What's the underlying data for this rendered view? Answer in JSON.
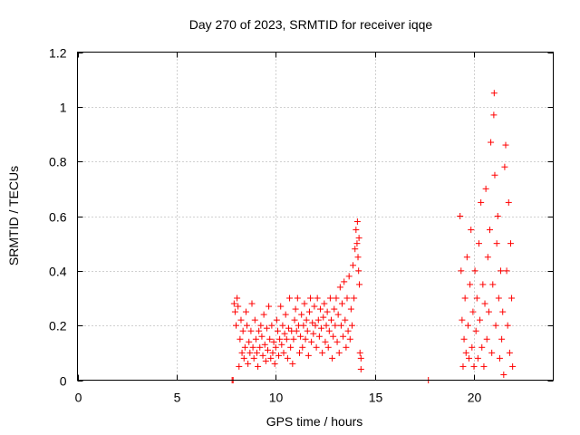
{
  "chart_data": {
    "type": "scatter",
    "title": "Day 270 of 2023, SRMTID for receiver iqqe",
    "xlabel": "GPS time / hours",
    "ylabel": "SRMTID / TECUs",
    "xlim": [
      0,
      24
    ],
    "ylim": [
      0,
      1.2
    ],
    "x_ticks": [
      0,
      5,
      10,
      15,
      20
    ],
    "x_tick_labels": [
      "0",
      "5",
      "10",
      "15",
      "20"
    ],
    "y_ticks": [
      0,
      0.2,
      0.4,
      0.6,
      0.8,
      1.0,
      1.2
    ],
    "y_tick_labels": [
      "0",
      "0.2",
      "0.4",
      "0.6",
      "0.8",
      "1",
      "1.2"
    ],
    "grid": true,
    "marker": "+",
    "color": "#ff0000",
    "series": [
      {
        "name": "SRMTID",
        "points": [
          [
            7.8,
            0.0
          ],
          [
            7.85,
            0.0
          ],
          [
            7.9,
            0.28
          ],
          [
            7.95,
            0.25
          ],
          [
            8.0,
            0.2
          ],
          [
            8.05,
            0.3
          ],
          [
            8.1,
            0.27
          ],
          [
            8.15,
            0.05
          ],
          [
            8.2,
            0.15
          ],
          [
            8.25,
            0.22
          ],
          [
            8.3,
            0.1
          ],
          [
            8.35,
            0.18
          ],
          [
            8.4,
            0.08
          ],
          [
            8.45,
            0.12
          ],
          [
            8.5,
            0.25
          ],
          [
            8.55,
            0.2
          ],
          [
            8.6,
            0.06
          ],
          [
            8.65,
            0.14
          ],
          [
            8.7,
            0.1
          ],
          [
            8.75,
            0.18
          ],
          [
            8.8,
            0.28
          ],
          [
            8.85,
            0.12
          ],
          [
            8.9,
            0.08
          ],
          [
            8.95,
            0.22
          ],
          [
            9.0,
            0.15
          ],
          [
            9.05,
            0.1
          ],
          [
            9.1,
            0.05
          ],
          [
            9.15,
            0.18
          ],
          [
            9.2,
            0.12
          ],
          [
            9.25,
            0.2
          ],
          [
            9.3,
            0.16
          ],
          [
            9.35,
            0.09
          ],
          [
            9.4,
            0.24
          ],
          [
            9.45,
            0.13
          ],
          [
            9.5,
            0.07
          ],
          [
            9.55,
            0.19
          ],
          [
            9.6,
            0.11
          ],
          [
            9.65,
            0.27
          ],
          [
            9.7,
            0.15
          ],
          [
            9.75,
            0.08
          ],
          [
            9.8,
            0.2
          ],
          [
            9.85,
            0.1
          ],
          [
            9.9,
            0.14
          ],
          [
            9.95,
            0.06
          ],
          [
            10.0,
            0.12
          ],
          [
            10.05,
            0.22
          ],
          [
            10.1,
            0.18
          ],
          [
            10.15,
            0.09
          ],
          [
            10.2,
            0.15
          ],
          [
            10.25,
            0.27
          ],
          [
            10.3,
            0.13
          ],
          [
            10.35,
            0.2
          ],
          [
            10.4,
            0.1
          ],
          [
            10.45,
            0.17
          ],
          [
            10.5,
            0.24
          ],
          [
            10.55,
            0.15
          ],
          [
            10.6,
            0.08
          ],
          [
            10.65,
            0.19
          ],
          [
            10.7,
            0.3
          ],
          [
            10.75,
            0.12
          ],
          [
            10.8,
            0.18
          ],
          [
            10.85,
            0.06
          ],
          [
            10.9,
            0.15
          ],
          [
            10.95,
            0.22
          ],
          [
            11.0,
            0.26
          ],
          [
            11.05,
            0.18
          ],
          [
            11.1,
            0.3
          ],
          [
            11.15,
            0.2
          ],
          [
            11.2,
            0.1
          ],
          [
            11.25,
            0.16
          ],
          [
            11.3,
            0.24
          ],
          [
            11.35,
            0.12
          ],
          [
            11.4,
            0.2
          ],
          [
            11.45,
            0.28
          ],
          [
            11.5,
            0.15
          ],
          [
            11.55,
            0.22
          ],
          [
            11.6,
            0.18
          ],
          [
            11.65,
            0.09
          ],
          [
            11.7,
            0.25
          ],
          [
            11.75,
            0.3
          ],
          [
            11.8,
            0.14
          ],
          [
            11.85,
            0.21
          ],
          [
            11.9,
            0.17
          ],
          [
            11.95,
            0.27
          ],
          [
            12.0,
            0.2
          ],
          [
            12.05,
            0.12
          ],
          [
            12.1,
            0.3
          ],
          [
            12.15,
            0.22
          ],
          [
            12.2,
            0.16
          ],
          [
            12.25,
            0.26
          ],
          [
            12.3,
            0.19
          ],
          [
            12.35,
            0.1
          ],
          [
            12.4,
            0.23
          ],
          [
            12.45,
            0.28
          ],
          [
            12.5,
            0.14
          ],
          [
            12.55,
            0.2
          ],
          [
            12.6,
            0.25
          ],
          [
            12.65,
            0.12
          ],
          [
            12.7,
            0.18
          ],
          [
            12.75,
            0.3
          ],
          [
            12.8,
            0.22
          ],
          [
            12.85,
            0.08
          ],
          [
            12.9,
            0.16
          ],
          [
            12.95,
            0.26
          ],
          [
            13.0,
            0.2
          ],
          [
            13.05,
            0.3
          ],
          [
            13.1,
            0.14
          ],
          [
            13.15,
            0.24
          ],
          [
            13.2,
            0.1
          ],
          [
            13.25,
            0.34
          ],
          [
            13.3,
            0.2
          ],
          [
            13.35,
            0.28
          ],
          [
            13.4,
            0.16
          ],
          [
            13.45,
            0.36
          ],
          [
            13.5,
            0.22
          ],
          [
            13.55,
            0.12
          ],
          [
            13.6,
            0.3
          ],
          [
            13.65,
            0.18
          ],
          [
            13.7,
            0.38
          ],
          [
            13.75,
            0.15
          ],
          [
            13.8,
            0.26
          ],
          [
            13.85,
            0.2
          ],
          [
            13.9,
            0.42
          ],
          [
            13.95,
            0.3
          ],
          [
            14.0,
            0.48
          ],
          [
            14.05,
            0.55
          ],
          [
            14.1,
            0.5
          ],
          [
            14.12,
            0.58
          ],
          [
            14.15,
            0.45
          ],
          [
            14.18,
            0.4
          ],
          [
            14.2,
            0.52
          ],
          [
            14.22,
            0.35
          ],
          [
            14.25,
            0.1
          ],
          [
            14.3,
            0.04
          ],
          [
            14.3,
            0.08
          ],
          [
            17.7,
            0.0
          ],
          [
            19.3,
            0.6
          ],
          [
            19.35,
            0.4
          ],
          [
            19.4,
            0.22
          ],
          [
            19.45,
            0.05
          ],
          [
            19.5,
            0.15
          ],
          [
            19.55,
            0.3
          ],
          [
            19.6,
            0.1
          ],
          [
            19.65,
            0.45
          ],
          [
            19.7,
            0.2
          ],
          [
            19.75,
            0.08
          ],
          [
            19.8,
            0.35
          ],
          [
            19.85,
            0.55
          ],
          [
            19.9,
            0.12
          ],
          [
            19.95,
            0.25
          ],
          [
            20.0,
            0.05
          ],
          [
            20.05,
            0.4
          ],
          [
            20.1,
            0.18
          ],
          [
            20.15,
            0.3
          ],
          [
            20.2,
            0.08
          ],
          [
            20.25,
            0.5
          ],
          [
            20.3,
            0.22
          ],
          [
            20.35,
            0.65
          ],
          [
            20.4,
            0.12
          ],
          [
            20.45,
            0.35
          ],
          [
            20.5,
            0.05
          ],
          [
            20.55,
            0.28
          ],
          [
            20.6,
            0.7
          ],
          [
            20.65,
            0.15
          ],
          [
            20.7,
            0.45
          ],
          [
            20.75,
            0.25
          ],
          [
            20.8,
            0.55
          ],
          [
            20.85,
            0.87
          ],
          [
            20.9,
            0.1
          ],
          [
            20.95,
            0.35
          ],
          [
            21.0,
            0.97
          ],
          [
            21.02,
            1.05
          ],
          [
            21.05,
            0.75
          ],
          [
            21.1,
            0.2
          ],
          [
            21.15,
            0.5
          ],
          [
            21.2,
            0.6
          ],
          [
            21.25,
            0.3
          ],
          [
            21.3,
            0.08
          ],
          [
            21.35,
            0.4
          ],
          [
            21.4,
            0.15
          ],
          [
            21.45,
            0.25
          ],
          [
            21.5,
            0.02
          ],
          [
            21.55,
            0.78
          ],
          [
            21.6,
            0.86
          ],
          [
            21.65,
            0.4
          ],
          [
            21.7,
            0.2
          ],
          [
            21.75,
            0.65
          ],
          [
            21.8,
            0.1
          ],
          [
            21.85,
            0.5
          ],
          [
            21.9,
            0.3
          ],
          [
            21.95,
            0.05
          ]
        ]
      }
    ]
  }
}
